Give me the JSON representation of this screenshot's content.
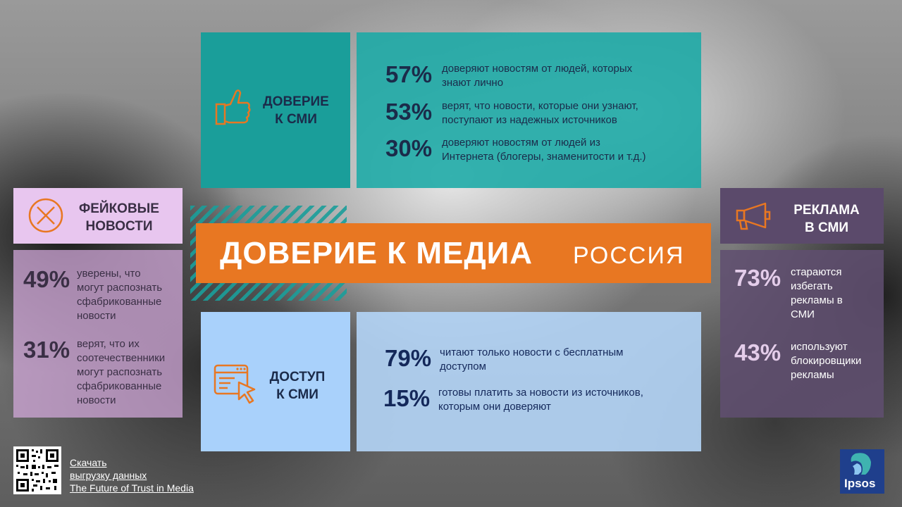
{
  "title": {
    "main": "ДОВЕРИЕ К МЕДИА",
    "sub": "РОССИЯ"
  },
  "colors": {
    "teal": "#1a9e9a",
    "orange": "#e87722",
    "light_blue": "#a9d1fb",
    "lilac": "#e8c6ef",
    "purple": "#5b4a6b",
    "navy": "#1f3f8c"
  },
  "trust": {
    "label_line1": "ДОВЕРИЕ",
    "label_line2": "К СМИ",
    "icon": "thumbs-up-icon",
    "stats": [
      {
        "pct": "57%",
        "line1": "доверяют новостям от людей, которых",
        "line2": "знают лично"
      },
      {
        "pct": "53%",
        "line1": "верят, что новости, которые они узнают,",
        "line2": "поступают из надежных источников"
      },
      {
        "pct": "30%",
        "line1": "доверяют новостям от людей из",
        "line2": "Интернета (блогеры, знаменитости и т.д.)"
      }
    ]
  },
  "access": {
    "label_line1": "ДОСТУП",
    "label_line2": "К СМИ",
    "icon": "browser-cursor-icon",
    "stats": [
      {
        "pct": "79%",
        "line1": "читают только новости с бесплатным",
        "line2": "доступом"
      },
      {
        "pct": "15%",
        "line1": "готовы платить за новости из источников,",
        "line2": "которым они доверяют"
      }
    ]
  },
  "fake": {
    "label_line1": "ФЕЙКОВЫЕ",
    "label_line2": "НОВОСТИ",
    "icon": "circle-x-icon",
    "stats": [
      {
        "pct": "49%",
        "lines": [
          "уверены, что",
          "могут распознать",
          "сфабрикованные",
          "новости"
        ]
      },
      {
        "pct": "31%",
        "lines": [
          "верят, что их",
          "соотечественники",
          "могут распознать",
          "сфабрикованные",
          "новости"
        ]
      }
    ]
  },
  "ads": {
    "label_line1": "РЕКЛАМА",
    "label_line2": "В СМИ",
    "icon": "megaphone-icon",
    "stats": [
      {
        "pct": "73%",
        "lines": [
          "стараются",
          "избегать",
          "рекламы в",
          "СМИ"
        ]
      },
      {
        "pct": "43%",
        "lines": [
          "используют",
          "блокировщики",
          "рекламы"
        ]
      }
    ]
  },
  "footer": {
    "link_lines": [
      "Скачать",
      "выгрузку данных",
      "The Future of Trust in Media"
    ],
    "logo_text": "Ipsos"
  }
}
